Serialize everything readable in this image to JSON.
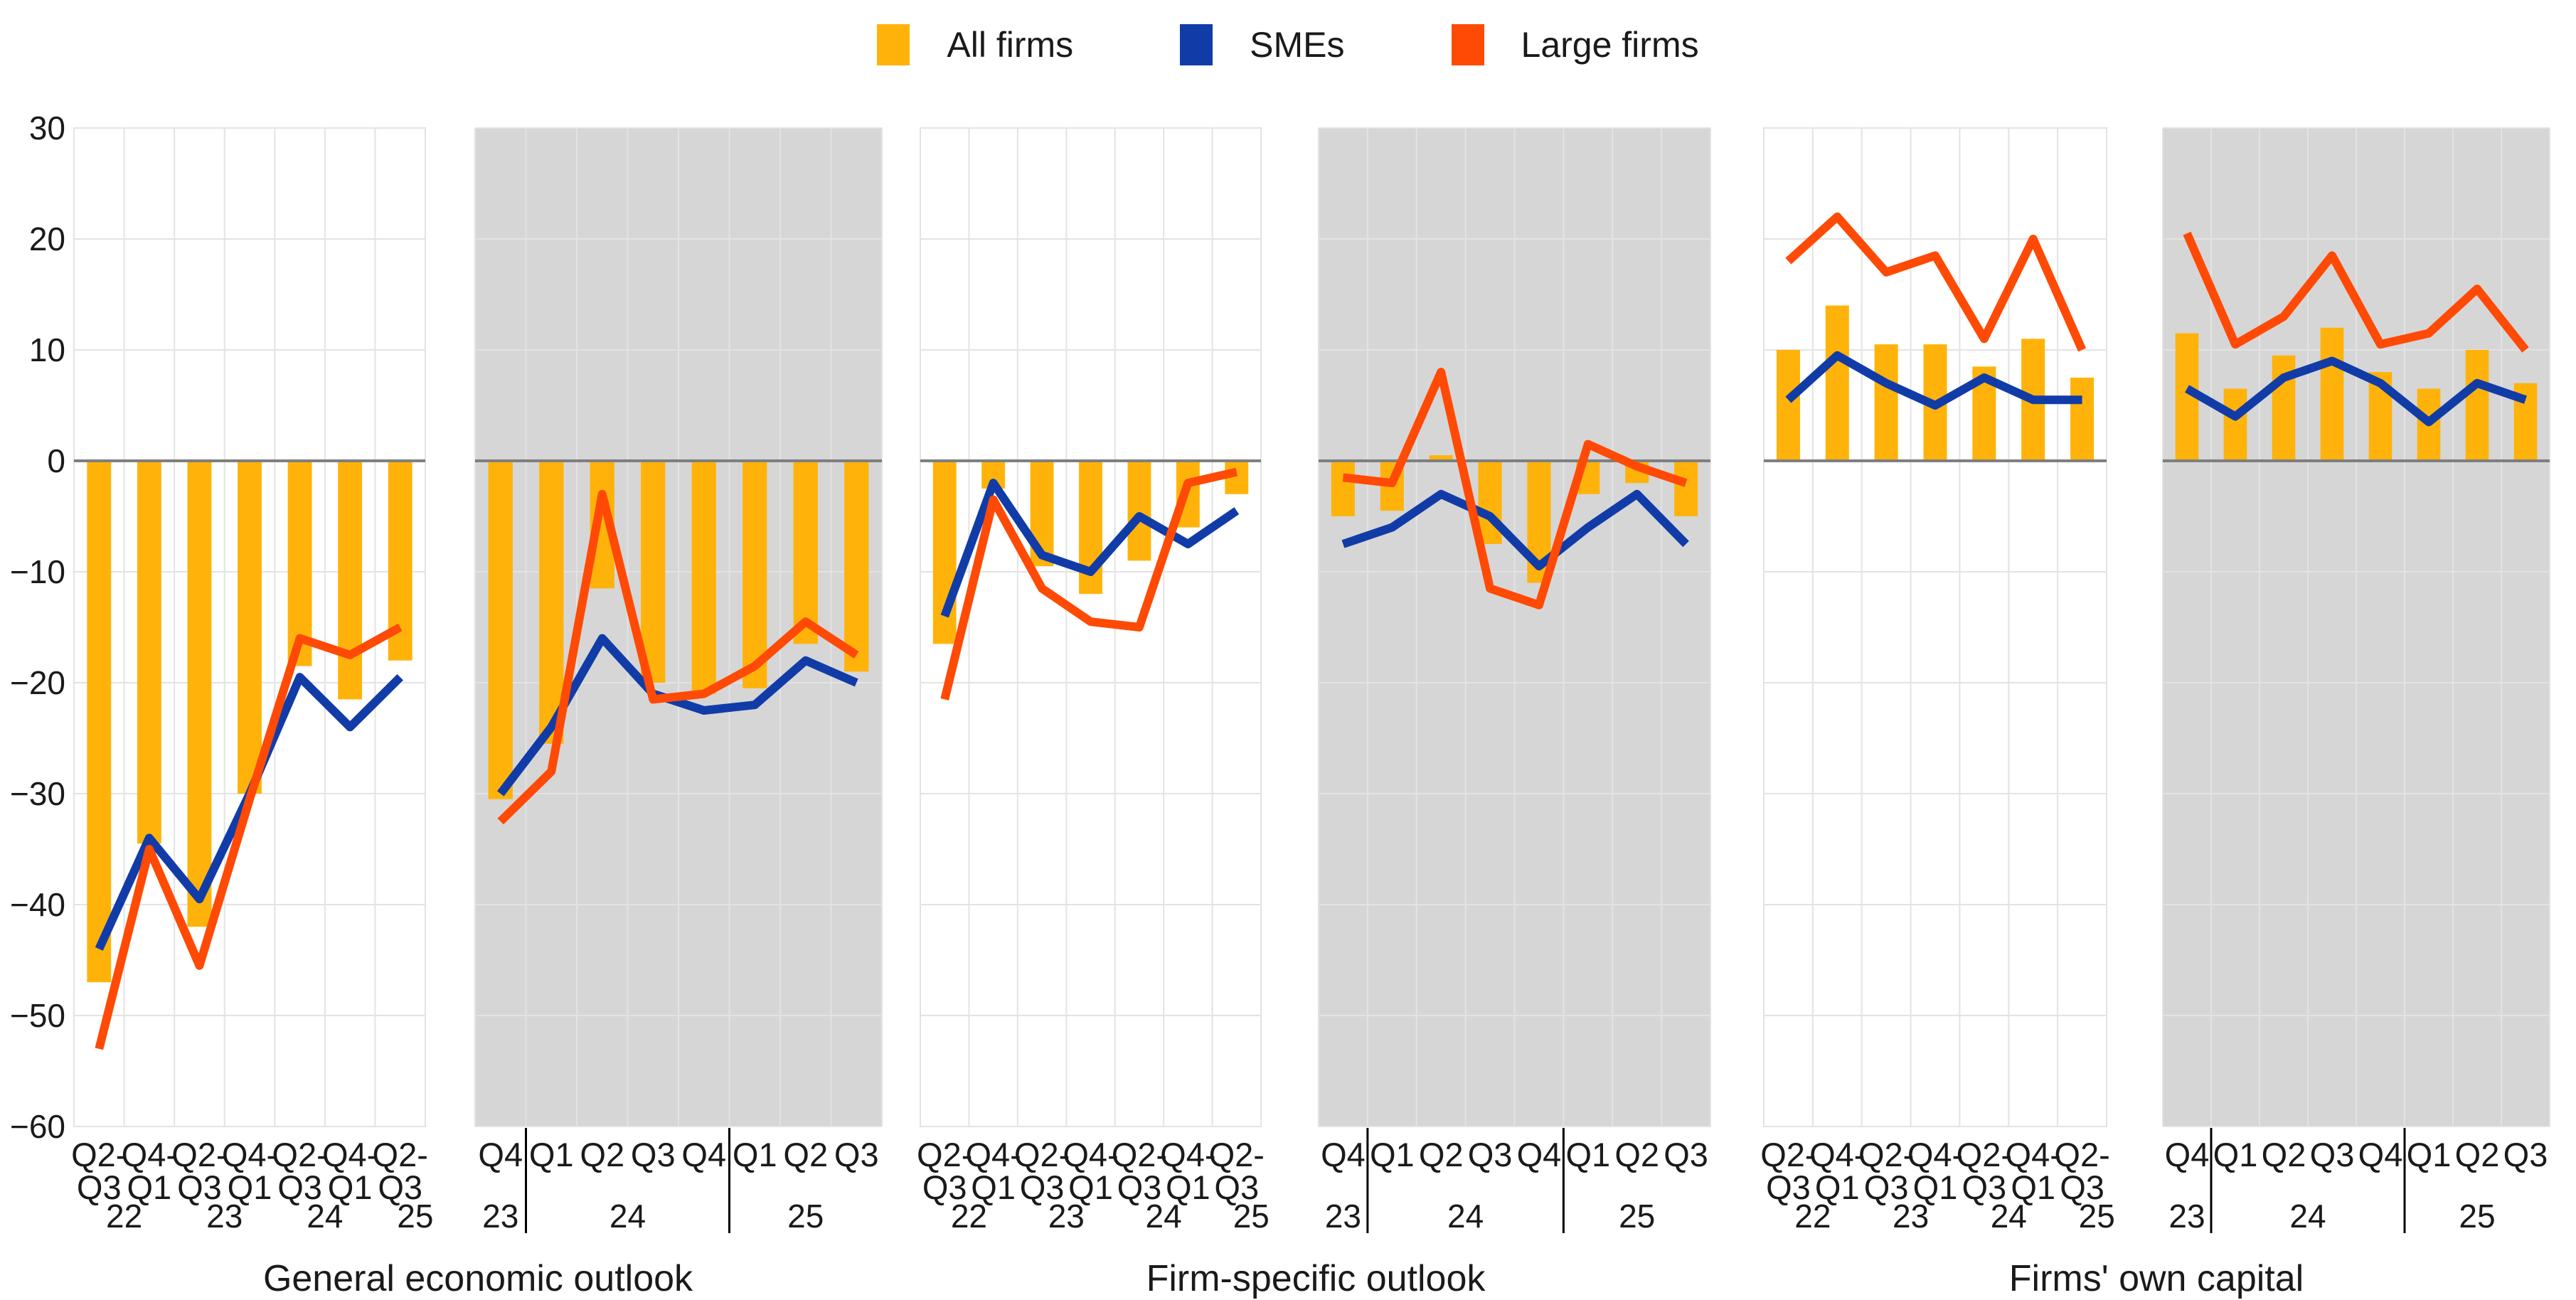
{
  "legend": {
    "items": [
      {
        "label": "All firms",
        "color": "#FFB30A",
        "type": "bar"
      },
      {
        "label": "SMEs",
        "color": "#113CA8",
        "type": "line"
      },
      {
        "label": "Large firms",
        "color": "#FF4A05",
        "type": "line"
      }
    ]
  },
  "colors": {
    "all_firms": "#FFB30A",
    "smes": "#113CA8",
    "large_firms": "#FF4A05",
    "gray_panel_background": "#D6D6D6",
    "gridline": "#E3E3E3",
    "zero_line": "#7F7F7F",
    "panel_border": "#D9D9D9",
    "separator": "#000000"
  },
  "y_axis": {
    "min": -60,
    "max": 30,
    "step": 10,
    "tick_labels": [
      "30",
      "20",
      "10",
      "0",
      "−10",
      "−20",
      "−30",
      "−40",
      "−50",
      "−60"
    ],
    "tick_values": [
      30,
      20,
      10,
      0,
      -10,
      -20,
      -30,
      -40,
      -50,
      -60
    ]
  },
  "panel_group_titles": [
    "General economic outlook",
    "Firm-specific outlook",
    "Firms' own capital"
  ],
  "chart_data": [
    {
      "key": "general-economic-outlook-semiannual",
      "group": 0,
      "type": "bar-line-combo",
      "background": "white",
      "ylim": [
        -60,
        30
      ],
      "categories": [
        "Q2-Q3",
        "Q4-Q1",
        "Q2-Q3",
        "Q4-Q1",
        "Q2-Q3",
        "Q4-Q1",
        "Q2-Q3"
      ],
      "years": [
        {
          "label": "22",
          "at": 0.5
        },
        {
          "label": "23",
          "at": 2.5
        },
        {
          "label": "24",
          "at": 4.5
        },
        {
          "label": "25",
          "at": 6.3
        }
      ],
      "separators_after": [],
      "series": [
        {
          "name": "All firms",
          "type": "bar",
          "values": [
            -47,
            -34.5,
            -42,
            -30,
            -18.5,
            -21.5,
            -18
          ]
        },
        {
          "name": "SMEs",
          "type": "line",
          "values": [
            -44,
            -34,
            -39.5,
            -30,
            -19.5,
            -24,
            -19.5
          ]
        },
        {
          "name": "Large firms",
          "type": "line",
          "values": [
            -53,
            -35,
            -45.5,
            -30.5,
            -16,
            -17.5,
            -15
          ]
        }
      ]
    },
    {
      "key": "general-economic-outlook-quarterly",
      "group": 0,
      "type": "bar-line-combo",
      "background": "gray",
      "ylim": [
        -60,
        30
      ],
      "categories": [
        "Q4",
        "Q1",
        "Q2",
        "Q3",
        "Q4",
        "Q1",
        "Q2",
        "Q3"
      ],
      "years": [
        {
          "label": "23",
          "at": 0
        },
        {
          "label": "24",
          "at": 2.5
        },
        {
          "label": "25",
          "at": 6
        }
      ],
      "separators_after": [
        0,
        4
      ],
      "series": [
        {
          "name": "All firms",
          "type": "bar",
          "values": [
            -30.5,
            -25.5,
            -11.5,
            -20,
            -21,
            -20.5,
            -16.5,
            -19
          ]
        },
        {
          "name": "SMEs",
          "type": "line",
          "values": [
            -30,
            -24,
            -16,
            -21,
            -22.5,
            -22,
            -18,
            -20
          ]
        },
        {
          "name": "Large firms",
          "type": "line",
          "values": [
            -32.5,
            -28,
            -3,
            -21.5,
            -21,
            -18.5,
            -14.5,
            -17.5
          ]
        }
      ]
    },
    {
      "key": "firm-specific-outlook-semiannual",
      "group": 1,
      "type": "bar-line-combo",
      "background": "white",
      "ylim": [
        -60,
        30
      ],
      "categories": [
        "Q2-Q3",
        "Q4-Q1",
        "Q2-Q3",
        "Q4-Q1",
        "Q2-Q3",
        "Q4-Q1",
        "Q2-Q3"
      ],
      "years": [
        {
          "label": "22",
          "at": 0.5
        },
        {
          "label": "23",
          "at": 2.5
        },
        {
          "label": "24",
          "at": 4.5
        },
        {
          "label": "25",
          "at": 6.3
        }
      ],
      "separators_after": [],
      "series": [
        {
          "name": "All firms",
          "type": "bar",
          "values": [
            -16.5,
            -2.5,
            -9.5,
            -12,
            -9,
            -6,
            -3
          ]
        },
        {
          "name": "SMEs",
          "type": "line",
          "values": [
            -14,
            -2,
            -8.5,
            -10,
            -5,
            -7.5,
            -4.5
          ]
        },
        {
          "name": "Large firms",
          "type": "line",
          "values": [
            -21.5,
            -3.5,
            -11.5,
            -14.5,
            -15,
            -2,
            -1
          ]
        }
      ]
    },
    {
      "key": "firm-specific-outlook-quarterly",
      "group": 1,
      "type": "bar-line-combo",
      "background": "gray",
      "ylim": [
        -60,
        30
      ],
      "categories": [
        "Q4",
        "Q1",
        "Q2",
        "Q3",
        "Q4",
        "Q1",
        "Q2",
        "Q3"
      ],
      "years": [
        {
          "label": "23",
          "at": 0
        },
        {
          "label": "24",
          "at": 2.5
        },
        {
          "label": "25",
          "at": 6
        }
      ],
      "separators_after": [
        0,
        4
      ],
      "series": [
        {
          "name": "All firms",
          "type": "bar",
          "values": [
            -5,
            -4.5,
            0.5,
            -7.5,
            -11,
            -3,
            -2,
            -5
          ]
        },
        {
          "name": "SMEs",
          "type": "line",
          "values": [
            -7.5,
            -6,
            -3,
            -5,
            -9.5,
            -6,
            -3,
            -7.5
          ]
        },
        {
          "name": "Large firms",
          "type": "line",
          "values": [
            -1.5,
            -2,
            8,
            -11.5,
            -13,
            1.5,
            -0.5,
            -2
          ]
        }
      ]
    },
    {
      "key": "firms-own-capital-semiannual",
      "group": 2,
      "type": "bar-line-combo",
      "background": "white",
      "ylim": [
        -60,
        30
      ],
      "categories": [
        "Q2-Q3",
        "Q4-Q1",
        "Q2-Q3",
        "Q4-Q1",
        "Q2-Q3",
        "Q4-Q1",
        "Q2-Q3"
      ],
      "years": [
        {
          "label": "22",
          "at": 0.5
        },
        {
          "label": "23",
          "at": 2.5
        },
        {
          "label": "24",
          "at": 4.5
        },
        {
          "label": "25",
          "at": 6.3
        }
      ],
      "separators_after": [],
      "series": [
        {
          "name": "All firms",
          "type": "bar",
          "values": [
            10,
            14,
            10.5,
            10.5,
            8.5,
            11,
            7.5
          ]
        },
        {
          "name": "SMEs",
          "type": "line",
          "values": [
            5.5,
            9.5,
            7,
            5,
            7.5,
            5.5,
            5.5
          ]
        },
        {
          "name": "Large firms",
          "type": "line",
          "values": [
            18,
            22,
            17,
            18.5,
            11,
            20,
            10
          ]
        }
      ]
    },
    {
      "key": "firms-own-capital-quarterly",
      "group": 2,
      "type": "bar-line-combo",
      "background": "gray",
      "ylim": [
        -60,
        30
      ],
      "categories": [
        "Q4",
        "Q1",
        "Q2",
        "Q3",
        "Q4",
        "Q1",
        "Q2",
        "Q3"
      ],
      "years": [
        {
          "label": "23",
          "at": 0
        },
        {
          "label": "24",
          "at": 2.5
        },
        {
          "label": "25",
          "at": 6
        }
      ],
      "separators_after": [
        0,
        4
      ],
      "series": [
        {
          "name": "All firms",
          "type": "bar",
          "values": [
            11.5,
            6.5,
            9.5,
            12,
            8,
            6.5,
            10,
            7
          ]
        },
        {
          "name": "SMEs",
          "type": "line",
          "values": [
            6.5,
            4,
            7.5,
            9,
            7,
            3.5,
            7,
            5.5
          ]
        },
        {
          "name": "Large firms",
          "type": "line",
          "values": [
            20.5,
            10.5,
            13,
            18.5,
            10.5,
            11.5,
            15.5,
            10
          ]
        }
      ]
    }
  ]
}
